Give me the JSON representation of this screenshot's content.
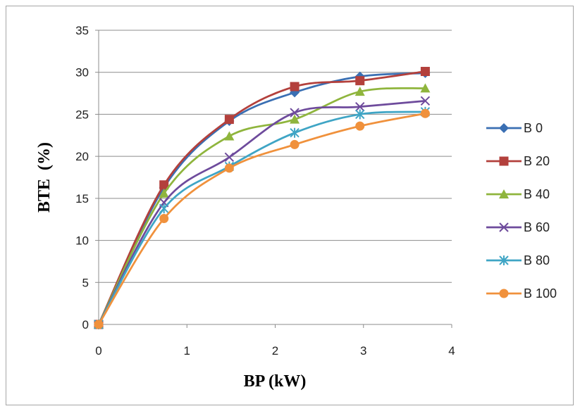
{
  "chart_data": {
    "type": "line",
    "title": "",
    "xlabel": "BP (kW)",
    "ylabel": "BTE  (%)",
    "xlim": [
      0,
      4
    ],
    "ylim": [
      0,
      35
    ],
    "xticks": [
      "0",
      "1",
      "2",
      "3",
      "4"
    ],
    "yticks": [
      "0",
      "5",
      "10",
      "15",
      "20",
      "25",
      "30",
      "35"
    ],
    "grid": "horizontal",
    "legend": "right",
    "x": [
      0,
      0.74,
      1.48,
      2.22,
      2.96,
      3.7
    ],
    "series": [
      {
        "name": "B 0",
        "color": "#3a6fb3",
        "marker": "diamond",
        "values": [
          0,
          16.3,
          24.2,
          27.6,
          29.5,
          29.9
        ]
      },
      {
        "name": "B 20",
        "color": "#b3403c",
        "marker": "square",
        "values": [
          0,
          16.6,
          24.4,
          28.3,
          29.0,
          30.1
        ]
      },
      {
        "name": "B 40",
        "color": "#8fb53d",
        "marker": "triangle",
        "values": [
          0,
          15.6,
          22.4,
          24.4,
          27.7,
          28.1
        ]
      },
      {
        "name": "B 60",
        "color": "#6e4b9c",
        "marker": "x",
        "values": [
          0,
          14.5,
          19.9,
          25.2,
          25.9,
          26.6
        ]
      },
      {
        "name": "B 80",
        "color": "#3fa5c5",
        "marker": "star",
        "values": [
          0,
          13.8,
          18.8,
          22.8,
          25.0,
          25.3
        ]
      },
      {
        "name": "B 100",
        "color": "#f0913c",
        "marker": "circle",
        "values": [
          0,
          12.6,
          18.6,
          21.4,
          23.6,
          25.1
        ]
      }
    ]
  }
}
